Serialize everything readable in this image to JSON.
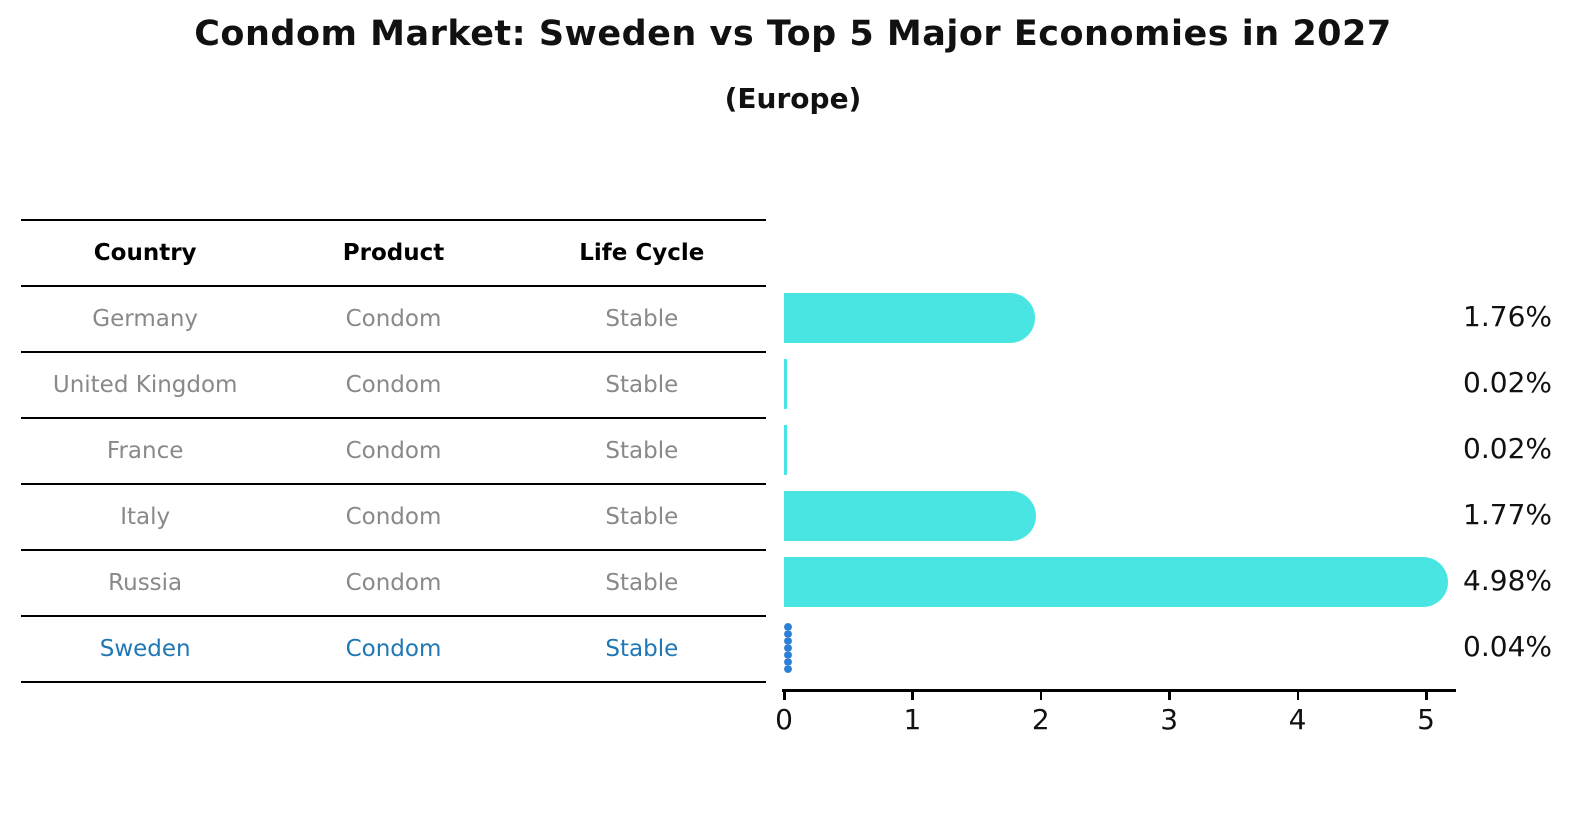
{
  "title": "Condom Market: Sweden vs Top 5 Major Economies in 2027",
  "subtitle": "(Europe)",
  "table": {
    "headers": [
      "Country",
      "Product",
      "Life Cycle"
    ],
    "rows": [
      {
        "country": "Germany",
        "product": "Condom",
        "life_cycle": "Stable",
        "highlight": false
      },
      {
        "country": "United Kingdom",
        "product": "Condom",
        "life_cycle": "Stable",
        "highlight": false
      },
      {
        "country": "France",
        "product": "Condom",
        "life_cycle": "Stable",
        "highlight": false
      },
      {
        "country": "Italy",
        "product": "Condom",
        "life_cycle": "Stable",
        "highlight": false
      },
      {
        "country": "Russia",
        "product": "Condom",
        "life_cycle": "Stable",
        "highlight": false
      },
      {
        "country": "Sweden",
        "product": "Condom",
        "life_cycle": "Stable",
        "highlight": true
      }
    ]
  },
  "chart_data": {
    "type": "bar",
    "orientation": "horizontal",
    "categories": [
      "Germany",
      "United Kingdom",
      "France",
      "Italy",
      "Russia",
      "Sweden"
    ],
    "values": [
      1.76,
      0.02,
      0.02,
      1.77,
      4.98,
      0.04
    ],
    "value_labels": [
      "1.76%",
      "0.02%",
      "0.02%",
      "1.77%",
      "4.98%",
      "0.04%"
    ],
    "xticks": [
      "0",
      "1",
      "2",
      "3",
      "4",
      "5"
    ],
    "xlim": [
      0,
      5.24
    ],
    "grid": false,
    "legend": "none",
    "bar_color": "#48e5e3",
    "highlight_bar_color": "#2b7fd4",
    "highlight_index": 5,
    "highlight_text_color": "#1f77b4",
    "axis_color": "#000000",
    "table_text_color": "#898989"
  }
}
